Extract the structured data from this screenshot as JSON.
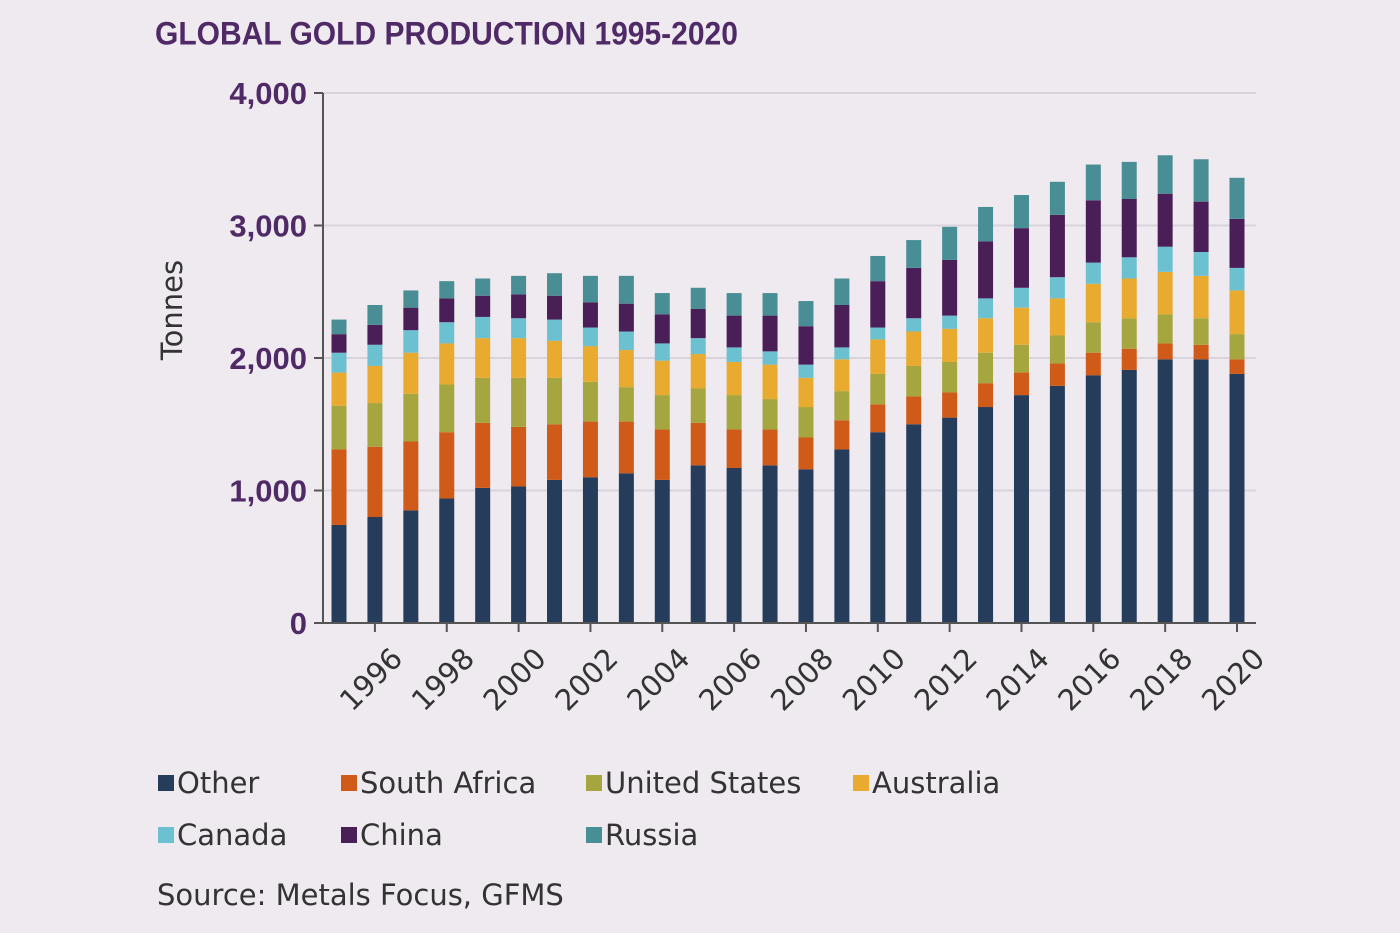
{
  "chart_data": {
    "type": "bar",
    "stacked": true,
    "title": "GLOBAL GOLD PRODUCTION 1995-2020",
    "ylabel": "Tonnes",
    "xlabel": "",
    "ylim": [
      0,
      4000
    ],
    "yticks": [
      0,
      1000,
      2000,
      3000,
      4000
    ],
    "ytick_labels": [
      "0",
      "1,000",
      "2,000",
      "3,000",
      "4,000"
    ],
    "grid": true,
    "legend_position": "bottom",
    "categories": [
      "1995",
      "1996",
      "1997",
      "1998",
      "1999",
      "2000",
      "2001",
      "2002",
      "2003",
      "2004",
      "2005",
      "2006",
      "2007",
      "2008",
      "2009",
      "2010",
      "2011",
      "2012",
      "2013",
      "2014",
      "2015",
      "2016",
      "2017",
      "2018",
      "2019",
      "2020"
    ],
    "xtick_labels": [
      "1996",
      "1998",
      "2000",
      "2002",
      "2004",
      "2006",
      "2008",
      "2010",
      "2012",
      "2014",
      "2016",
      "2018",
      "2020"
    ],
    "series": [
      {
        "name": "Other",
        "color": "#253d5b",
        "values": [
          740,
          800,
          850,
          940,
          1020,
          1030,
          1080,
          1100,
          1130,
          1080,
          1190,
          1170,
          1190,
          1160,
          1310,
          1440,
          1500,
          1550,
          1630,
          1720,
          1790,
          1870,
          1910,
          1990,
          1990,
          1880
        ]
      },
      {
        "name": "South Africa",
        "color": "#d05a17",
        "values": [
          570,
          530,
          520,
          500,
          490,
          450,
          420,
          420,
          390,
          380,
          320,
          290,
          270,
          240,
          220,
          210,
          210,
          190,
          180,
          170,
          170,
          170,
          160,
          120,
          110,
          110
        ]
      },
      {
        "name": "United States",
        "color": "#a6a641",
        "values": [
          330,
          330,
          360,
          360,
          340,
          370,
          350,
          300,
          260,
          260,
          260,
          260,
          230,
          230,
          220,
          230,
          230,
          230,
          230,
          210,
          210,
          230,
          230,
          220,
          200,
          190
        ]
      },
      {
        "name": "Australia",
        "color": "#e8ab2f",
        "values": [
          250,
          280,
          310,
          310,
          300,
          300,
          280,
          270,
          280,
          260,
          260,
          250,
          260,
          220,
          240,
          260,
          260,
          250,
          260,
          280,
          280,
          290,
          300,
          320,
          320,
          330
        ]
      },
      {
        "name": "Canada",
        "color": "#6cc1d1",
        "values": [
          150,
          160,
          170,
          160,
          160,
          150,
          160,
          140,
          140,
          130,
          120,
          110,
          100,
          100,
          90,
          90,
          100,
          100,
          150,
          150,
          160,
          160,
          160,
          190,
          180,
          170
        ]
      },
      {
        "name": "China",
        "color": "#4a1e56",
        "values": [
          140,
          150,
          170,
          180,
          160,
          180,
          180,
          190,
          210,
          220,
          220,
          240,
          270,
          290,
          320,
          350,
          380,
          420,
          430,
          450,
          470,
          470,
          440,
          400,
          380,
          370
        ]
      },
      {
        "name": "Russia",
        "color": "#4a8e95",
        "values": [
          110,
          150,
          130,
          130,
          130,
          140,
          170,
          200,
          210,
          160,
          160,
          170,
          170,
          190,
          200,
          190,
          210,
          250,
          260,
          250,
          250,
          270,
          280,
          290,
          320,
          310
        ]
      }
    ]
  },
  "source": "Source: Metals Focus, GFMS"
}
